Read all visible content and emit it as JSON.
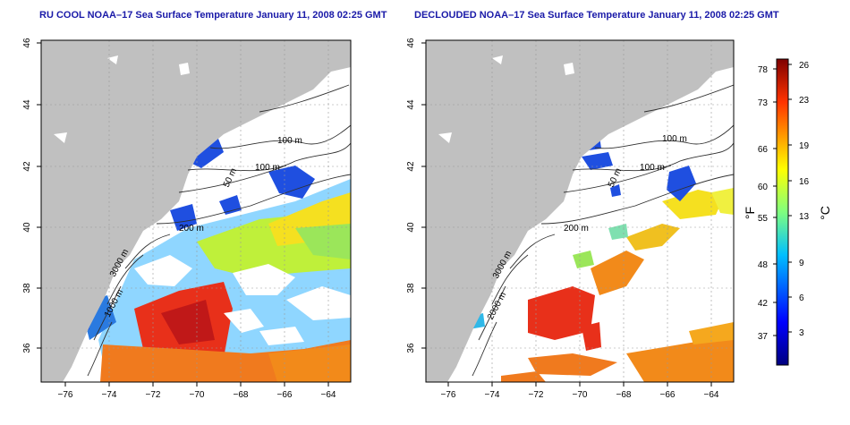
{
  "panels": [
    {
      "title": "RU COOL NOAA–17 Sea Surface Temperature January 11, 2008 02:25 GMT",
      "xticks": [
        "−76",
        "−74",
        "−72",
        "−70",
        "−68",
        "−66",
        "−64"
      ],
      "yticks": [
        "36",
        "38",
        "40",
        "42",
        "44",
        "46"
      ],
      "contour_labels": [
        "100 m",
        "100 m",
        "200 m",
        "50 m",
        "1000 m",
        "3000 m"
      ]
    },
    {
      "title": "DECLOUDED NOAA–17 Sea Surface Temperature January 11, 2008 02:25 GMT",
      "xticks": [
        "−76",
        "−74",
        "−72",
        "−70",
        "−68",
        "−66",
        "−64"
      ],
      "yticks": [
        "36",
        "38",
        "40",
        "42",
        "44",
        "46"
      ],
      "contour_labels": [
        "100 m",
        "100 m",
        "200 m",
        "50 m",
        "2000 m",
        "3000 m"
      ]
    }
  ],
  "colorbar": {
    "fahrenheit_label": "°F",
    "celsius_label": "°C",
    "fahrenheit_ticks": [
      "78",
      "73",
      "66",
      "60",
      "55",
      "48",
      "42",
      "37"
    ],
    "celsius_ticks": [
      "26",
      "23",
      "19",
      "16",
      "13",
      "9",
      "6",
      "3"
    ]
  },
  "colors": {
    "land": "#c0c0c0",
    "cloud": "#ffffff",
    "title": "#1a1aa8",
    "cold": "#1f4fe0",
    "warm": "#e8301a"
  }
}
